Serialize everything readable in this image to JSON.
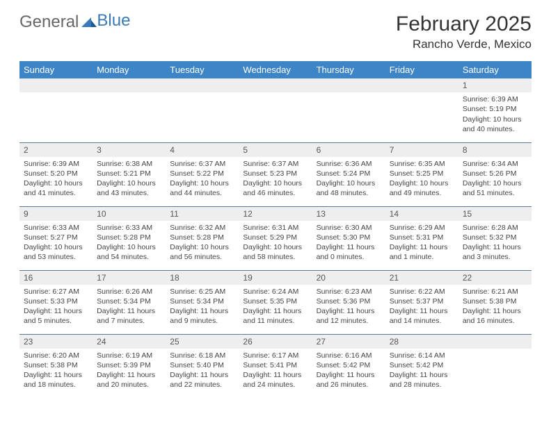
{
  "logo": {
    "text1": "General",
    "text2": "Blue"
  },
  "title": "February 2025",
  "location": "Rancho Verde, Mexico",
  "colors": {
    "header_bg": "#3d85c6",
    "header_text": "#ffffff",
    "daynum_bg": "#eeeeee",
    "border": "#5a7a9a",
    "logo_accent": "#3a7ab8"
  },
  "day_headers": [
    "Sunday",
    "Monday",
    "Tuesday",
    "Wednesday",
    "Thursday",
    "Friday",
    "Saturday"
  ],
  "weeks": [
    [
      null,
      null,
      null,
      null,
      null,
      null,
      {
        "n": "1",
        "sr": "6:39 AM",
        "ss": "5:19 PM",
        "dl": "10 hours and 40 minutes."
      }
    ],
    [
      {
        "n": "2",
        "sr": "6:39 AM",
        "ss": "5:20 PM",
        "dl": "10 hours and 41 minutes."
      },
      {
        "n": "3",
        "sr": "6:38 AM",
        "ss": "5:21 PM",
        "dl": "10 hours and 43 minutes."
      },
      {
        "n": "4",
        "sr": "6:37 AM",
        "ss": "5:22 PM",
        "dl": "10 hours and 44 minutes."
      },
      {
        "n": "5",
        "sr": "6:37 AM",
        "ss": "5:23 PM",
        "dl": "10 hours and 46 minutes."
      },
      {
        "n": "6",
        "sr": "6:36 AM",
        "ss": "5:24 PM",
        "dl": "10 hours and 48 minutes."
      },
      {
        "n": "7",
        "sr": "6:35 AM",
        "ss": "5:25 PM",
        "dl": "10 hours and 49 minutes."
      },
      {
        "n": "8",
        "sr": "6:34 AM",
        "ss": "5:26 PM",
        "dl": "10 hours and 51 minutes."
      }
    ],
    [
      {
        "n": "9",
        "sr": "6:33 AM",
        "ss": "5:27 PM",
        "dl": "10 hours and 53 minutes."
      },
      {
        "n": "10",
        "sr": "6:33 AM",
        "ss": "5:28 PM",
        "dl": "10 hours and 54 minutes."
      },
      {
        "n": "11",
        "sr": "6:32 AM",
        "ss": "5:28 PM",
        "dl": "10 hours and 56 minutes."
      },
      {
        "n": "12",
        "sr": "6:31 AM",
        "ss": "5:29 PM",
        "dl": "10 hours and 58 minutes."
      },
      {
        "n": "13",
        "sr": "6:30 AM",
        "ss": "5:30 PM",
        "dl": "11 hours and 0 minutes."
      },
      {
        "n": "14",
        "sr": "6:29 AM",
        "ss": "5:31 PM",
        "dl": "11 hours and 1 minute."
      },
      {
        "n": "15",
        "sr": "6:28 AM",
        "ss": "5:32 PM",
        "dl": "11 hours and 3 minutes."
      }
    ],
    [
      {
        "n": "16",
        "sr": "6:27 AM",
        "ss": "5:33 PM",
        "dl": "11 hours and 5 minutes."
      },
      {
        "n": "17",
        "sr": "6:26 AM",
        "ss": "5:34 PM",
        "dl": "11 hours and 7 minutes."
      },
      {
        "n": "18",
        "sr": "6:25 AM",
        "ss": "5:34 PM",
        "dl": "11 hours and 9 minutes."
      },
      {
        "n": "19",
        "sr": "6:24 AM",
        "ss": "5:35 PM",
        "dl": "11 hours and 11 minutes."
      },
      {
        "n": "20",
        "sr": "6:23 AM",
        "ss": "5:36 PM",
        "dl": "11 hours and 12 minutes."
      },
      {
        "n": "21",
        "sr": "6:22 AM",
        "ss": "5:37 PM",
        "dl": "11 hours and 14 minutes."
      },
      {
        "n": "22",
        "sr": "6:21 AM",
        "ss": "5:38 PM",
        "dl": "11 hours and 16 minutes."
      }
    ],
    [
      {
        "n": "23",
        "sr": "6:20 AM",
        "ss": "5:38 PM",
        "dl": "11 hours and 18 minutes."
      },
      {
        "n": "24",
        "sr": "6:19 AM",
        "ss": "5:39 PM",
        "dl": "11 hours and 20 minutes."
      },
      {
        "n": "25",
        "sr": "6:18 AM",
        "ss": "5:40 PM",
        "dl": "11 hours and 22 minutes."
      },
      {
        "n": "26",
        "sr": "6:17 AM",
        "ss": "5:41 PM",
        "dl": "11 hours and 24 minutes."
      },
      {
        "n": "27",
        "sr": "6:16 AM",
        "ss": "5:42 PM",
        "dl": "11 hours and 26 minutes."
      },
      {
        "n": "28",
        "sr": "6:14 AM",
        "ss": "5:42 PM",
        "dl": "11 hours and 28 minutes."
      },
      null
    ]
  ],
  "labels": {
    "sunrise": "Sunrise:",
    "sunset": "Sunset:",
    "daylight": "Daylight:"
  }
}
